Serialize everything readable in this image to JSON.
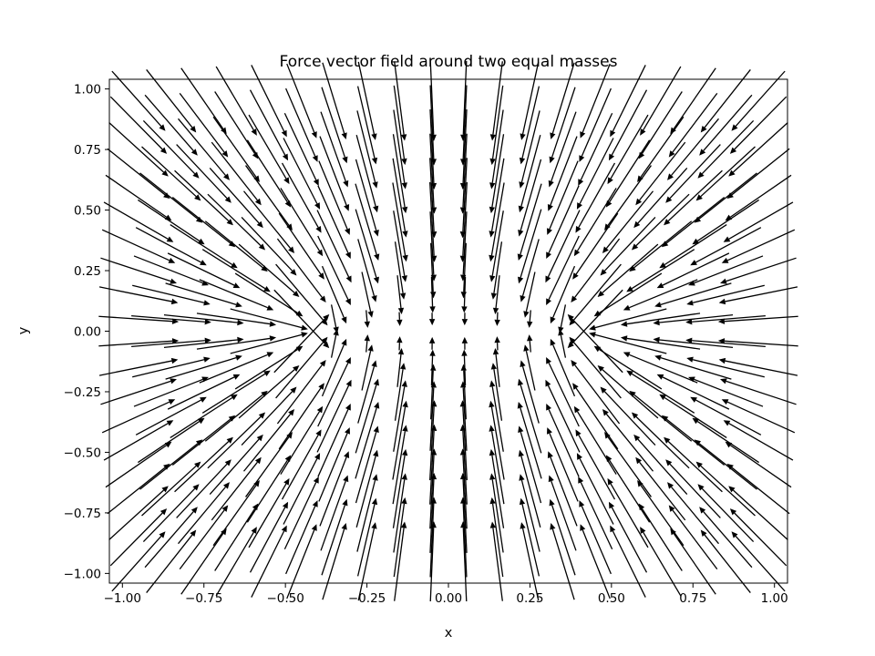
{
  "chart_data": {
    "type": "quiver",
    "title": "Force vector field around two equal masses",
    "xlabel": "x",
    "ylabel": "y",
    "xlim": [
      -1.04,
      1.04
    ],
    "ylim": [
      -1.04,
      1.04
    ],
    "grid": false,
    "masses": [
      {
        "x": -0.45,
        "y": 0.0
      },
      {
        "x": 0.45,
        "y": 0.0
      }
    ],
    "grid_points": {
      "x": [
        -0.95,
        -0.85,
        -0.75,
        -0.65,
        -0.55,
        -0.45,
        -0.35,
        -0.25,
        -0.15,
        -0.05,
        0.05,
        0.15,
        0.25,
        0.35,
        0.45,
        0.55,
        0.65,
        0.75,
        0.85,
        0.95
      ],
      "y": [
        -0.95,
        -0.85,
        -0.75,
        -0.65,
        -0.55,
        -0.45,
        -0.35,
        -0.25,
        -0.15,
        -0.05,
        0.05,
        0.15,
        0.25,
        0.35,
        0.45,
        0.55,
        0.65,
        0.75,
        0.85,
        0.95
      ]
    },
    "vector_rule": "Unit vectors pointing toward each mass, summed and normalized, and clipped to a maximum length",
    "xticks": [
      "−1.00",
      "−0.75",
      "−0.50",
      "−0.25",
      "0.00",
      "0.25",
      "0.50",
      "0.75",
      "1.00"
    ],
    "xtick_values": [
      -1.0,
      -0.75,
      -0.5,
      -0.25,
      0.0,
      0.25,
      0.5,
      0.75,
      1.0
    ],
    "yticks": [
      "−1.00",
      "−0.75",
      "−0.50",
      "−0.25",
      "0.00",
      "0.25",
      "0.50",
      "0.75",
      "1.00"
    ],
    "ytick_values": [
      -1.0,
      -0.75,
      -0.5,
      -0.25,
      0.0,
      0.25,
      0.5,
      0.75,
      1.0
    ],
    "arrow_color": "#000000"
  }
}
